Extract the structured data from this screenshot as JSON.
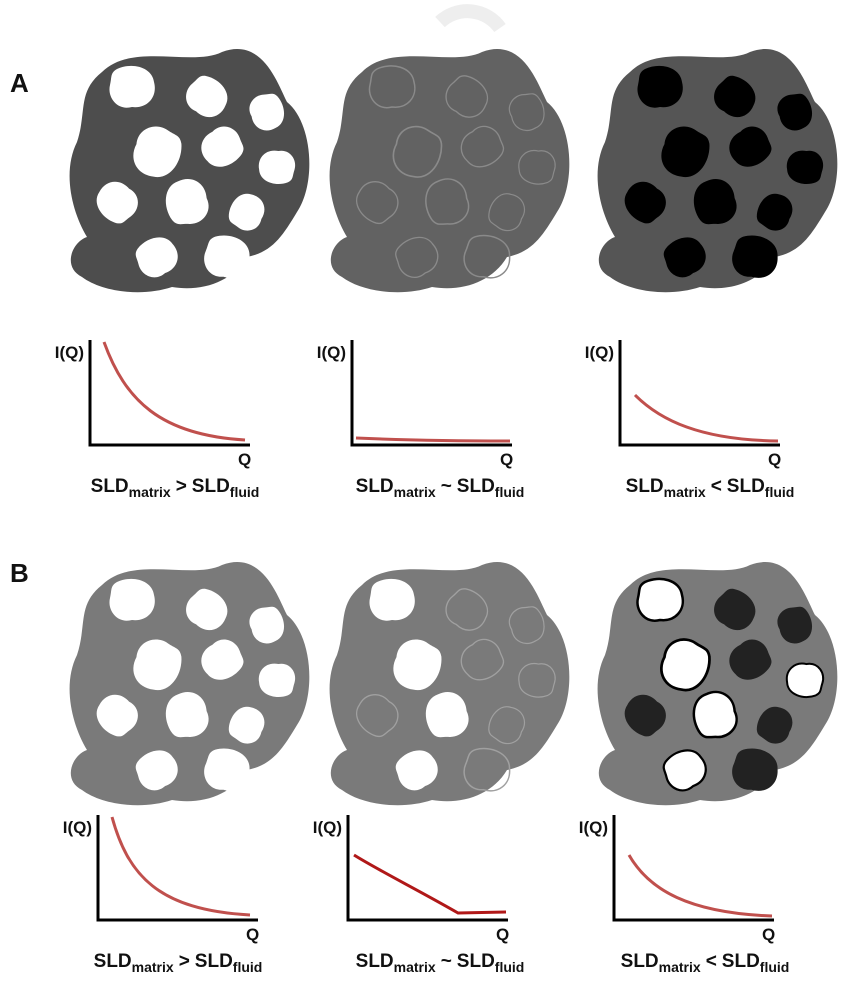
{
  "panels": [
    {
      "label": "A",
      "items": [
        {
          "y_label": "I(Q)",
          "x_label": "Q",
          "caption": {
            "left": "SLD",
            "left_sub": "matrix",
            "relation": ">",
            "right": "SLD",
            "right_sub": "fluid"
          }
        },
        {
          "y_label": "I(Q)",
          "x_label": "Q",
          "caption": {
            "left": "SLD",
            "left_sub": "matrix",
            "relation": "~",
            "right": "SLD",
            "right_sub": "fluid"
          }
        },
        {
          "y_label": "I(Q)",
          "x_label": "Q",
          "caption": {
            "left": "SLD",
            "left_sub": "matrix",
            "relation": "<",
            "right": "SLD",
            "right_sub": "fluid"
          }
        }
      ]
    },
    {
      "label": "B",
      "items": [
        {
          "y_label": "I(Q)",
          "x_label": "Q",
          "caption": {
            "left": "SLD",
            "left_sub": "matrix",
            "relation": ">",
            "right": "SLD",
            "right_sub": "fluid"
          }
        },
        {
          "y_label": "I(Q)",
          "x_label": "Q",
          "caption": {
            "left": "SLD",
            "left_sub": "matrix",
            "relation": "~",
            "right": "SLD",
            "right_sub": "fluid"
          }
        },
        {
          "y_label": "I(Q)",
          "x_label": "Q",
          "caption": {
            "left": "SLD",
            "left_sub": "matrix",
            "relation": "<",
            "right": "SLD",
            "right_sub": "fluid"
          }
        }
      ]
    }
  ]
}
